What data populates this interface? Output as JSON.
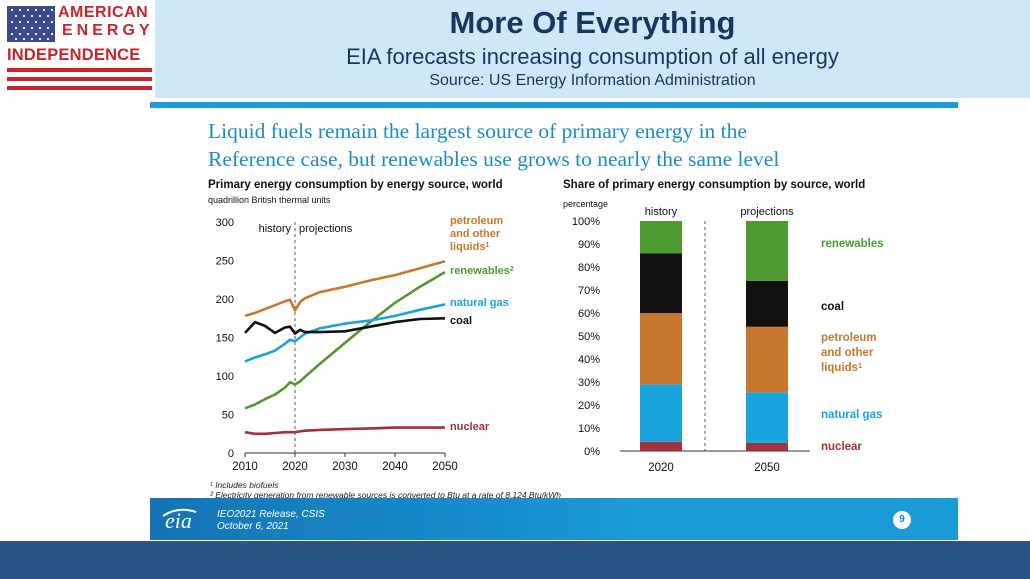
{
  "header": {
    "logo_lines": [
      "AMERICAN",
      "ENERGY",
      "INDEPENDENCE"
    ],
    "title": "More Of Everything",
    "subtitle": "EIA forecasts increasing consumption of all energy",
    "source": "Source: US Energy Information Administration"
  },
  "slide": {
    "headline_line1": "Liquid fuels remain the largest source of primary energy in the",
    "headline_line2": "Reference case, but renewables use grows to nearly the same level",
    "footnote1": "¹ Includes biofuels",
    "footnote2": "² Electricity generation from renewable sources is converted to Btu at a rate of 8,124 Btu/kWh",
    "footer_logo": "eia",
    "footer_release": "IEO2021 Release, CSIS",
    "footer_date": "October 6, 2021",
    "page_number": "9"
  },
  "colors": {
    "petroleum": "#c8782e",
    "renewables": "#4e9a30",
    "natural_gas": "#1aa4dc",
    "coal": "#111111",
    "nuclear": "#a3313b",
    "headline": "#1c8dc4",
    "header_bg": "#cfe8f8",
    "header_text": "#17375e",
    "bottom_band": "#2b5484"
  },
  "chart_data": [
    {
      "type": "line",
      "title": "Primary energy consumption by energy source, world",
      "subtitle": "quadrillion British thermal units",
      "x": [
        2010,
        2012,
        2014,
        2016,
        2018,
        2019,
        2020,
        2021,
        2022,
        2025,
        2030,
        2035,
        2040,
        2045,
        2050
      ],
      "xlim": [
        2010,
        2050
      ],
      "ylim": [
        0,
        300
      ],
      "xticks": [
        2010,
        2020,
        2030,
        2040,
        2050
      ],
      "yticks": [
        0,
        50,
        100,
        150,
        200,
        250,
        300
      ],
      "annotations": [
        "history",
        "projections"
      ],
      "divider_x": 2020,
      "series": [
        {
          "name": "petroleum and other liquids",
          "sup": "1",
          "color_key": "petroleum",
          "values": [
            178,
            182,
            187,
            192,
            197,
            199,
            185,
            196,
            201,
            209,
            216,
            224,
            231,
            240,
            249
          ]
        },
        {
          "name": "renewables",
          "sup": "2",
          "color_key": "renewables",
          "values": [
            58,
            63,
            70,
            76,
            85,
            92,
            89,
            93,
            99,
            116,
            143,
            170,
            195,
            216,
            235
          ]
        },
        {
          "name": "natural gas",
          "sup": "",
          "color_key": "natural_gas",
          "values": [
            119,
            124,
            128,
            133,
            142,
            147,
            145,
            150,
            155,
            162,
            168,
            172,
            178,
            186,
            193
          ]
        },
        {
          "name": "coal",
          "sup": "",
          "color_key": "coal",
          "values": [
            156,
            170,
            165,
            156,
            163,
            164,
            155,
            160,
            157,
            157,
            158,
            164,
            170,
            174,
            175
          ]
        },
        {
          "name": "nuclear",
          "sup": "",
          "color_key": "nuclear",
          "values": [
            27,
            25,
            25,
            26,
            27,
            27,
            27,
            28,
            29,
            30,
            31,
            32,
            33,
            33,
            33
          ]
        }
      ]
    },
    {
      "type": "bar",
      "stacked": true,
      "title": "Share of primary energy consumption by source, world",
      "subtitle": "percentage",
      "categories": [
        "2020",
        "2050"
      ],
      "group_labels": [
        "history",
        "projections"
      ],
      "yticks": [
        "0%",
        "10%",
        "20%",
        "30%",
        "40%",
        "50%",
        "60%",
        "70%",
        "80%",
        "90%",
        "100%"
      ],
      "ylim": [
        0,
        100
      ],
      "series": [
        {
          "name": "nuclear",
          "color_key": "nuclear",
          "values": [
            4,
            3.5
          ]
        },
        {
          "name": "natural gas",
          "color_key": "natural_gas",
          "values": [
            25,
            22
          ]
        },
        {
          "name": "petroleum and other liquids",
          "sup": "1",
          "color_key": "petroleum",
          "values": [
            31,
            28.5
          ]
        },
        {
          "name": "coal",
          "color_key": "coal",
          "values": [
            26,
            20
          ]
        },
        {
          "name": "renewables",
          "color_key": "renewables",
          "values": [
            14,
            26
          ]
        }
      ]
    }
  ]
}
